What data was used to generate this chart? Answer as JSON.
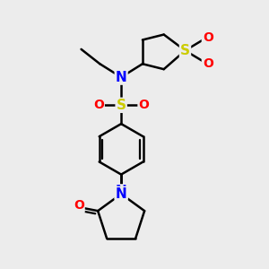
{
  "background_color": "#ececec",
  "atom_colors": {
    "C": "#000000",
    "N": "#0000ff",
    "O": "#ff0000",
    "S": "#cccc00"
  },
  "bond_color": "#000000",
  "bond_width": 1.8,
  "font_size_atom": 11
}
